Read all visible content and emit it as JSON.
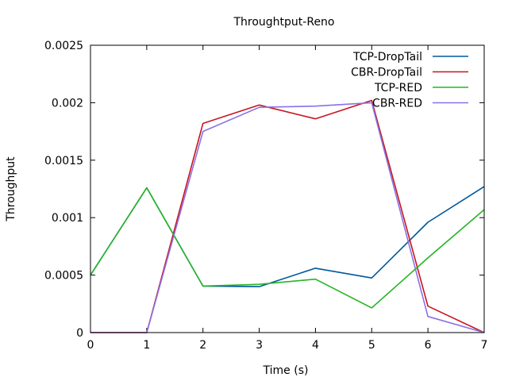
{
  "chart_data": {
    "type": "line",
    "title": "Throughtput-Reno",
    "xlabel": "Time (s)",
    "ylabel": "Throughput",
    "xlim": [
      0,
      7
    ],
    "ylim": [
      0,
      0.0025
    ],
    "x_ticks": [
      "0",
      "1",
      "2",
      "3",
      "4",
      "5",
      "6",
      "7"
    ],
    "y_ticks": [
      "0",
      "0.0005",
      "0.001",
      "0.0015",
      "0.002",
      "0.0025"
    ],
    "grid": false,
    "legend_position": "top-right",
    "x": [
      0,
      1,
      2,
      3,
      4,
      5,
      6,
      7
    ],
    "series": [
      {
        "name": "TCP-DropTail",
        "color": "#00589c",
        "values": [
          0.0005,
          0.00126,
          0.000405,
          0.0004,
          0.00056,
          0.000475,
          0.00096,
          0.00127
        ]
      },
      {
        "name": "CBR-DropTail",
        "color": "#c8161d",
        "values": [
          0,
          0,
          0.00182,
          0.00198,
          0.00186,
          0.00202,
          0.00023,
          0
        ]
      },
      {
        "name": "TCP-RED",
        "color": "#26b526",
        "values": [
          0.0005,
          0.00126,
          0.000405,
          0.00042,
          0.000465,
          0.000215,
          0.00065,
          0.00107
        ]
      },
      {
        "name": "CBR-RED",
        "color": "#8a70e8",
        "values": [
          0,
          0,
          0.00175,
          0.00196,
          0.00197,
          0.002,
          0.00014,
          0
        ]
      }
    ]
  }
}
